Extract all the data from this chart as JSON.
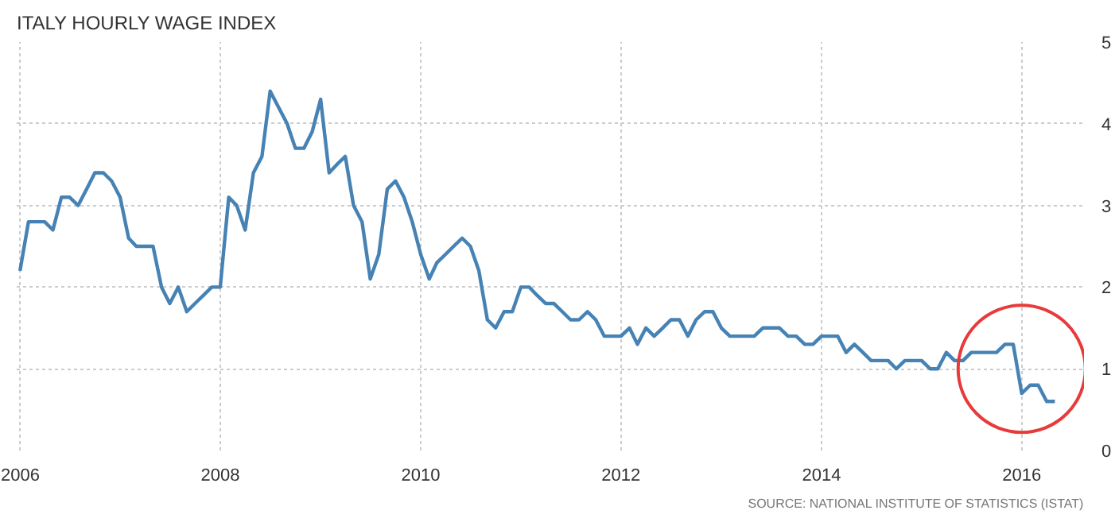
{
  "chart_data": {
    "type": "line",
    "title": "ITALY HOURLY WAGE INDEX",
    "annotations": [
      "SOURCE: NATIONAL INSTITUTE OF STATISTICS (ISTAT)"
    ],
    "x": [
      "2006-01",
      "2006-02",
      "2006-03",
      "2006-04",
      "2006-05",
      "2006-06",
      "2006-07",
      "2006-08",
      "2006-09",
      "2006-10",
      "2006-11",
      "2006-12",
      "2007-01",
      "2007-02",
      "2007-03",
      "2007-04",
      "2007-05",
      "2007-06",
      "2007-07",
      "2007-08",
      "2007-09",
      "2007-10",
      "2007-11",
      "2007-12",
      "2008-01",
      "2008-02",
      "2008-03",
      "2008-04",
      "2008-05",
      "2008-06",
      "2008-07",
      "2008-08",
      "2008-09",
      "2008-10",
      "2008-11",
      "2008-12",
      "2009-01",
      "2009-02",
      "2009-03",
      "2009-04",
      "2009-05",
      "2009-06",
      "2009-07",
      "2009-08",
      "2009-09",
      "2009-10",
      "2009-11",
      "2009-12",
      "2010-01",
      "2010-02",
      "2010-03",
      "2010-04",
      "2010-05",
      "2010-06",
      "2010-07",
      "2010-08",
      "2010-09",
      "2010-10",
      "2010-11",
      "2010-12",
      "2011-01",
      "2011-02",
      "2011-03",
      "2011-04",
      "2011-05",
      "2011-06",
      "2011-07",
      "2011-08",
      "2011-09",
      "2011-10",
      "2011-11",
      "2011-12",
      "2012-01",
      "2012-02",
      "2012-03",
      "2012-04",
      "2012-05",
      "2012-06",
      "2012-07",
      "2012-08",
      "2012-09",
      "2012-10",
      "2012-11",
      "2012-12",
      "2013-01",
      "2013-02",
      "2013-03",
      "2013-04",
      "2013-05",
      "2013-06",
      "2013-07",
      "2013-08",
      "2013-09",
      "2013-10",
      "2013-11",
      "2013-12",
      "2014-01",
      "2014-02",
      "2014-03",
      "2014-04",
      "2014-05",
      "2014-06",
      "2014-07",
      "2014-08",
      "2014-09",
      "2014-10",
      "2014-11",
      "2014-12",
      "2015-01",
      "2015-02",
      "2015-03",
      "2015-04",
      "2015-05",
      "2015-06",
      "2015-07",
      "2015-08",
      "2015-09",
      "2015-10",
      "2015-11",
      "2015-12",
      "2016-01",
      "2016-02",
      "2016-03",
      "2016-04",
      "2016-05"
    ],
    "series": [
      {
        "color": "#4682b4",
        "values": [
          2.2,
          2.8,
          2.8,
          2.8,
          2.7,
          3.1,
          3.1,
          3.0,
          3.2,
          3.4,
          3.4,
          3.3,
          3.1,
          2.6,
          2.5,
          2.5,
          2.5,
          2.0,
          1.8,
          2.0,
          1.7,
          1.8,
          1.9,
          2.0,
          2.0,
          3.1,
          3.0,
          2.7,
          3.4,
          3.6,
          4.4,
          4.2,
          4.0,
          3.7,
          3.7,
          3.9,
          4.3,
          3.4,
          3.5,
          3.6,
          3.0,
          2.8,
          2.1,
          2.4,
          3.2,
          3.3,
          3.1,
          2.8,
          2.4,
          2.1,
          2.3,
          2.4,
          2.5,
          2.6,
          2.5,
          2.2,
          1.6,
          1.5,
          1.7,
          1.7,
          2.0,
          2.0,
          1.9,
          1.8,
          1.8,
          1.7,
          1.6,
          1.6,
          1.7,
          1.6,
          1.4,
          1.4,
          1.4,
          1.5,
          1.3,
          1.5,
          1.4,
          1.5,
          1.6,
          1.6,
          1.4,
          1.6,
          1.7,
          1.7,
          1.5,
          1.4,
          1.4,
          1.4,
          1.4,
          1.5,
          1.5,
          1.5,
          1.4,
          1.4,
          1.3,
          1.3,
          1.4,
          1.4,
          1.4,
          1.2,
          1.3,
          1.2,
          1.1,
          1.1,
          1.1,
          1.0,
          1.1,
          1.1,
          1.1,
          1.0,
          1.0,
          1.2,
          1.1,
          1.1,
          1.2,
          1.2,
          1.2,
          1.2,
          1.3,
          1.3,
          0.7,
          0.8,
          0.8,
          0.6,
          0.6
        ]
      }
    ],
    "xlim": [
      "2005-12-20",
      "2016-08-15"
    ],
    "xticks": [
      {
        "value": "2006-01-01",
        "label": "2006"
      },
      {
        "value": "2008-01-01",
        "label": "2008"
      },
      {
        "value": "2010-01-01",
        "label": "2010"
      },
      {
        "value": "2012-01-01",
        "label": "2012"
      },
      {
        "value": "2014-01-01",
        "label": "2014"
      },
      {
        "value": "2016-01-01",
        "label": "2016"
      }
    ],
    "ylim": [
      0,
      5
    ],
    "yticks": [
      0,
      1,
      2,
      3,
      4,
      5
    ],
    "grid": true
  }
}
